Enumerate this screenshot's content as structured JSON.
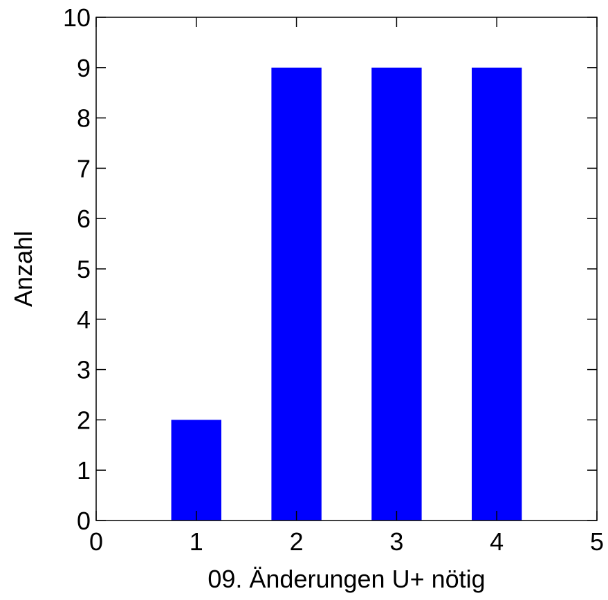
{
  "chart_data": {
    "type": "bar",
    "title": "",
    "xlabel": "09. Änderungen U+ nötig",
    "ylabel": "Anzahl",
    "x": [
      1,
      2,
      3,
      4
    ],
    "values": [
      2,
      9,
      9,
      9
    ],
    "xlim": [
      0,
      5
    ],
    "ylim": [
      0,
      10
    ],
    "xticks": [
      0,
      1,
      2,
      3,
      4,
      5
    ],
    "yticks": [
      0,
      1,
      2,
      3,
      4,
      5,
      6,
      7,
      8,
      9,
      10
    ],
    "bar_color": "#0000ff",
    "grid": false,
    "legend": "none"
  }
}
